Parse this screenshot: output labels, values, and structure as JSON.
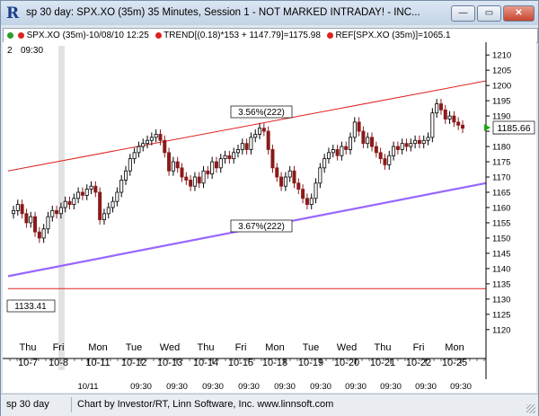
{
  "window": {
    "title": "sp 30 day: SPX.XO (35m) 35 Minutes, Session 1 - NOT MARKED INTRADAY! - INC...",
    "minimize_label": "—",
    "restore_label": "▭",
    "close_label": "✕"
  },
  "infobar": {
    "symbol": "SPX.XO (35m)-10/08/10 12:25",
    "trend": "TREND[(0.18)*153 + 1147.79]=1175.98",
    "ref": "REF[SPX.XO (35m)]=1065.1"
  },
  "chart": {
    "top_left_a": "2",
    "top_left_b": "09:30",
    "price_badge": "1185.66",
    "upper_channel_label": "3.56%(222)",
    "lower_channel_label": "3.67%(222)",
    "ref_line_label": "1133.41",
    "colors": {
      "red_line": "#e02020",
      "purple_line": "#9966ff",
      "candle_up": "#000000",
      "candle_down": "#8b1a1a",
      "green_arrow": "#1ca81c"
    }
  },
  "chart_data": {
    "type": "candlestick",
    "y_ticks": [
      1120,
      1125,
      1130,
      1135,
      1140,
      1145,
      1150,
      1155,
      1160,
      1165,
      1170,
      1175,
      1180,
      1185,
      1190,
      1195,
      1200,
      1205,
      1210
    ],
    "ylim": [
      1117,
      1213
    ],
    "days": [
      {
        "dow": "Thu",
        "date": "10-7"
      },
      {
        "dow": "Fri",
        "date": "10-8"
      },
      {
        "dow": "Mon",
        "date": "10-11"
      },
      {
        "dow": "Tue",
        "date": "10-12"
      },
      {
        "dow": "Wed",
        "date": "10-13"
      },
      {
        "dow": "Thu",
        "date": "10-14"
      },
      {
        "dow": "Fri",
        "date": "10-15"
      },
      {
        "dow": "Mon",
        "date": "10-18"
      },
      {
        "dow": "Tue",
        "date": "10-19"
      },
      {
        "dow": "Wed",
        "date": "10-20"
      },
      {
        "dow": "Thu",
        "date": "10-21"
      },
      {
        "dow": "Fri",
        "date": "10-22"
      },
      {
        "dow": "Mon",
        "date": "10-25"
      }
    ],
    "bottom_labels": [
      "10/11",
      "09:30",
      "09:30",
      "09:30",
      "09:30",
      "09:30",
      "09:30",
      "09:30",
      "09:30",
      "09:30",
      "09:30",
      "09:30",
      "09:30"
    ],
    "upper_channel": {
      "start": 1172.0,
      "end": 1201.5
    },
    "lower_channel": {
      "start": 1137.5,
      "end": 1168.0
    },
    "ref_level": 1133.41,
    "closes": [
      1159,
      1161,
      1158,
      1155,
      1157,
      1152,
      1150,
      1153,
      1157,
      1159,
      1158,
      1160,
      1162,
      1161,
      1163,
      1165,
      1164,
      1166,
      1167,
      1165,
      1156,
      1158,
      1160,
      1162,
      1165,
      1169,
      1172,
      1176,
      1178,
      1180,
      1181,
      1182,
      1183,
      1184,
      1182,
      1178,
      1172,
      1175,
      1173,
      1170,
      1169,
      1167,
      1170,
      1168,
      1172,
      1171,
      1175,
      1173,
      1176,
      1177,
      1176,
      1178,
      1179,
      1181,
      1179,
      1183,
      1184,
      1186,
      1185,
      1179,
      1173,
      1170,
      1167,
      1170,
      1172,
      1168,
      1166,
      1163,
      1161,
      1163,
      1168,
      1173,
      1176,
      1178,
      1179,
      1177,
      1180,
      1179,
      1183,
      1188,
      1185,
      1181,
      1183,
      1180,
      1178,
      1176,
      1174,
      1177,
      1180,
      1179,
      1181,
      1180,
      1181,
      1182,
      1181,
      1182,
      1183,
      1191,
      1194,
      1192,
      1189,
      1190,
      1188,
      1187,
      1186
    ]
  }
}
